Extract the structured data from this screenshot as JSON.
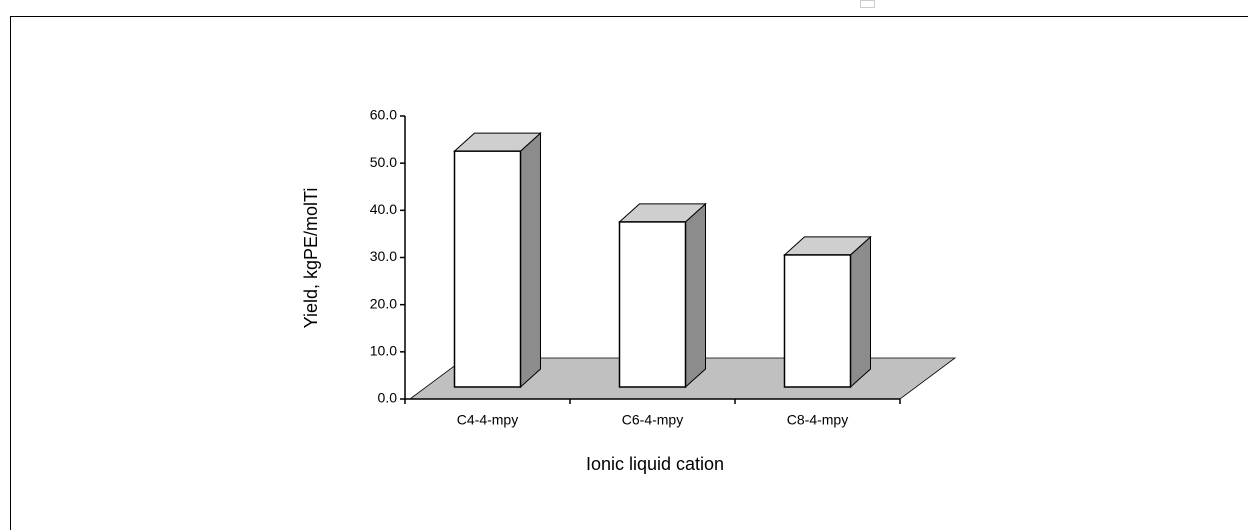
{
  "chart_data": {
    "type": "bar3d",
    "x_label": "Ionic liquid cation",
    "y_label": "Yield, kgPE/molTi",
    "categories": [
      "C4-4-mpy",
      "C6-4-mpy",
      "C8-4-mpy"
    ],
    "values": [
      50,
      35,
      28
    ],
    "color": "#ffffff",
    "ylim": [
      0,
      60
    ],
    "yticks": [
      {
        "value": 0,
        "label": "0.0"
      },
      {
        "value": 10,
        "label": "10.0"
      },
      {
        "value": 20,
        "label": "20.0"
      },
      {
        "value": 30,
        "label": "30.0"
      },
      {
        "value": 40,
        "label": "40.0"
      },
      {
        "value": 50,
        "label": "50.0"
      },
      {
        "value": 60,
        "label": "60.0"
      }
    ]
  }
}
